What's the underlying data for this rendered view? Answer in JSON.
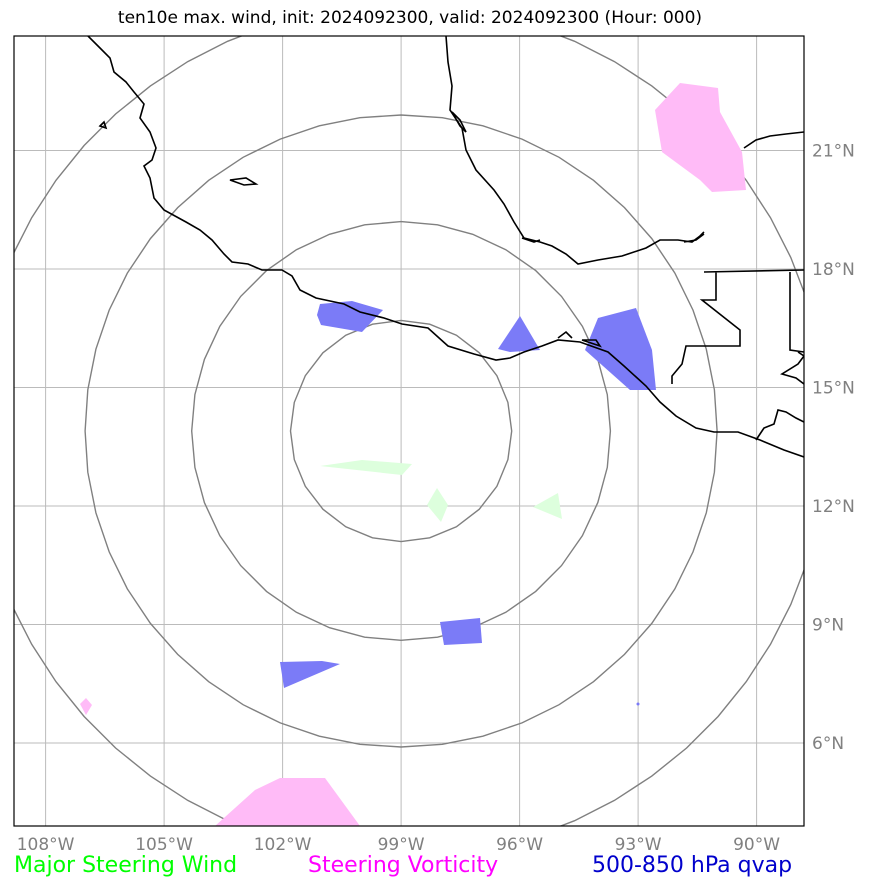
{
  "title": "ten10e max. wind, init: 2024092300, valid: 2024092300 (Hour: 000)",
  "lon_ticks": [
    {
      "value": -108,
      "label": "108°W"
    },
    {
      "value": -105,
      "label": "105°W"
    },
    {
      "value": -102,
      "label": "102°W"
    },
    {
      "value": -99,
      "label": "99°W"
    },
    {
      "value": -96,
      "label": "96°W"
    },
    {
      "value": -93,
      "label": "93°W"
    },
    {
      "value": -90,
      "label": "90°W"
    }
  ],
  "lat_ticks": [
    {
      "value": 21,
      "label": "21°N"
    },
    {
      "value": 18,
      "label": "18°N"
    },
    {
      "value": 15,
      "label": "15°N"
    },
    {
      "value": 12,
      "label": "12°N"
    },
    {
      "value": 9,
      "label": "9°N"
    },
    {
      "value": 6,
      "label": "6°N"
    }
  ],
  "map_extent": {
    "lon": [
      -108.8,
      -88.8
    ],
    "lat": [
      3.9,
      23.9
    ]
  },
  "center": {
    "lon": -99,
    "lat": 13.9
  },
  "range_rings_deg": [
    2.8,
    5.3,
    8.0,
    10.8
  ],
  "legend": [
    {
      "label": "Major Steering Wind",
      "color": "#00ff00"
    },
    {
      "label": "Steering Vorticity",
      "color": "#ff00ff"
    },
    {
      "label": "500-850 hPa qvap",
      "color": "#0000cc"
    }
  ],
  "colors": {
    "grid": "#bbbbbb",
    "rings": "#808080",
    "coast": "#000000",
    "wind_fill": "#ddffdd",
    "vort_fill": "#ffbbf7",
    "qvap_fill": "#7b7bf7"
  }
}
